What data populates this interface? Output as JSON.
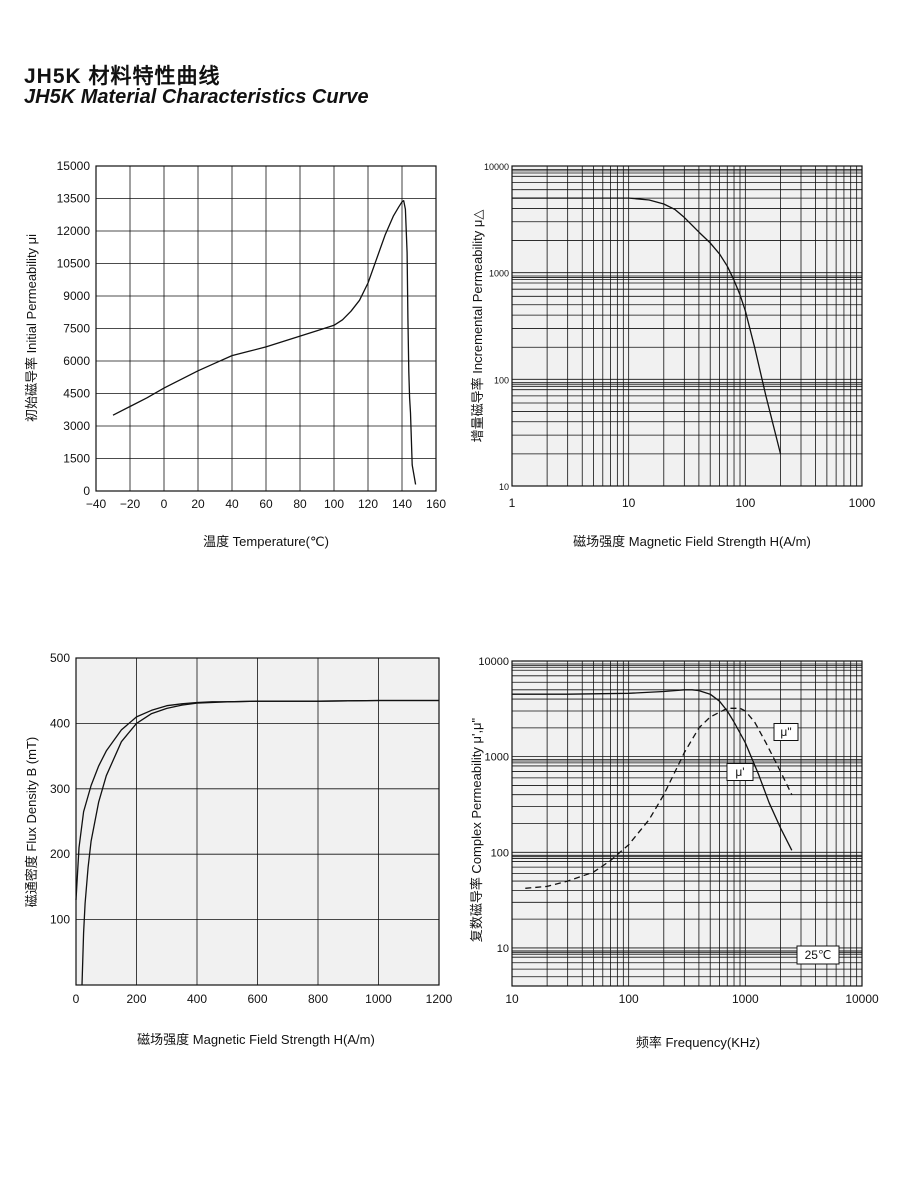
{
  "page": {
    "title_cn": "JH5K 材料特性曲线",
    "title_en": "JH5K Material Characteristics Curve"
  },
  "chart_data": [
    {
      "id": "c1",
      "type": "line",
      "xlabel": "温度 Temperature(℃)",
      "ylabel": "初始磁导率 Initial Permeability μi",
      "xlim": [
        -40,
        160
      ],
      "ylim": [
        0,
        15000
      ],
      "x_ticks": [
        -40,
        -20,
        0,
        20,
        40,
        60,
        80,
        100,
        120,
        140,
        160
      ],
      "x_tick_labels": [
        "−40",
        "−20",
        "0",
        "20",
        "40",
        "60",
        "80",
        "100",
        "120",
        "140",
        "160"
      ],
      "y_ticks": [
        0,
        1500,
        3000,
        4500,
        6000,
        7500,
        9000,
        10500,
        12000,
        13500,
        15000
      ],
      "y_tick_labels": [
        "0",
        "1500",
        "3000",
        "4500",
        "6000",
        "7500",
        "9000",
        "10500",
        "12000",
        "13500",
        "15000"
      ],
      "grid": true,
      "series": [
        {
          "x": [
            -30,
            -20,
            -10,
            0,
            10,
            20,
            30,
            40,
            50,
            60,
            70,
            80,
            90,
            100,
            105,
            110,
            115,
            120,
            125,
            130,
            135,
            138,
            140,
            141,
            142,
            143,
            143.5,
            144,
            144.5,
            145,
            146,
            148
          ],
          "y": [
            3500,
            3900,
            4300,
            4750,
            5150,
            5550,
            5900,
            6250,
            6450,
            6650,
            6900,
            7150,
            7400,
            7650,
            7900,
            8300,
            8800,
            9600,
            10700,
            11800,
            12700,
            13100,
            13350,
            13400,
            13000,
            11000,
            8000,
            5500,
            4300,
            3600,
            1200,
            300
          ],
          "style": "solid"
        }
      ]
    },
    {
      "id": "c2",
      "type": "line",
      "xlabel": "磁场强度 Magnetic Field Strength H(A/m)",
      "ylabel": "增量磁导率 Incremental Permeability μ△",
      "xscale": "log",
      "yscale": "log",
      "xlim": [
        1,
        1000
      ],
      "ylim": [
        10,
        10000
      ],
      "x_ticks": [
        1,
        10,
        100,
        1000
      ],
      "x_tick_labels": [
        "1",
        "10",
        "100",
        "1000"
      ],
      "y_ticks": [
        10,
        100,
        1000,
        10000
      ],
      "y_tick_labels": [
        "10",
        "100",
        "1000",
        "10000"
      ],
      "grid": true,
      "series": [
        {
          "x": [
            1,
            5,
            10,
            15,
            20,
            25,
            30,
            40,
            50,
            60,
            70,
            80,
            90,
            100,
            120,
            150,
            200
          ],
          "y": [
            5000,
            5000,
            5000,
            4800,
            4400,
            3900,
            3300,
            2400,
            1900,
            1500,
            1150,
            850,
            620,
            440,
            200,
            70,
            20
          ],
          "style": "solid"
        }
      ]
    },
    {
      "id": "c3",
      "type": "line",
      "xlabel": "磁场强度 Magnetic Field Strength H(A/m)",
      "ylabel": "磁通密度 Flux Density B (mT)",
      "xlim": [
        0,
        1200
      ],
      "ylim": [
        0,
        500
      ],
      "x_ticks": [
        0,
        200,
        400,
        600,
        800,
        1000,
        1200
      ],
      "x_tick_labels": [
        "0",
        "200",
        "400",
        "600",
        "800",
        "1000",
        "1200"
      ],
      "y_ticks": [
        100,
        200,
        300,
        400,
        500
      ],
      "y_tick_labels": [
        "100",
        "200",
        "300",
        "400",
        "500"
      ],
      "grid": true,
      "series": [
        {
          "x": [
            0,
            10,
            25,
            50,
            75,
            100,
            150,
            200,
            250,
            300,
            350,
            400,
            450,
            500,
            600,
            800,
            1000,
            1200
          ],
          "y": [
            130,
            210,
            265,
            305,
            335,
            358,
            390,
            410,
            420,
            427,
            430,
            432,
            433,
            433,
            434,
            434,
            435,
            435
          ],
          "style": "solid"
        },
        {
          "x": [
            20,
            25,
            30,
            40,
            50,
            75,
            100,
            150,
            200,
            250,
            300,
            350,
            400,
            450,
            500,
            600,
            800,
            1000,
            1200
          ],
          "y": [
            0,
            80,
            125,
            180,
            220,
            280,
            320,
            372,
            400,
            415,
            423,
            428,
            431,
            432,
            433,
            434,
            434,
            435,
            435
          ],
          "style": "solid"
        }
      ]
    },
    {
      "id": "c4",
      "type": "line",
      "xlabel": "频率 Frequency(KHz)",
      "ylabel": "复数磁导率 Complex Permeability μ',μ\"",
      "xscale": "log",
      "yscale": "log",
      "xlim": [
        10,
        10000
      ],
      "ylim": [
        4,
        10000
      ],
      "x_ticks": [
        10,
        100,
        1000,
        10000
      ],
      "x_tick_labels": [
        "10",
        "100",
        "1000",
        "10000"
      ],
      "y_ticks": [
        10,
        100,
        1000,
        10000
      ],
      "y_tick_labels": [
        "10",
        "100",
        "1000",
        "10000"
      ],
      "grid": true,
      "annotations": [
        "μ'",
        "μ\"",
        "25℃"
      ],
      "series": [
        {
          "name": "μ'",
          "x": [
            10,
            30,
            100,
            200,
            300,
            350,
            400,
            500,
            600,
            700,
            800,
            1000,
            1300,
            1600,
            2000,
            2500
          ],
          "y": [
            4500,
            4500,
            4600,
            4800,
            5000,
            5000,
            4900,
            4500,
            3800,
            3000,
            2300,
            1400,
            650,
            330,
            180,
            105
          ],
          "style": "solid"
        },
        {
          "name": "μ\"",
          "x": [
            13,
            20,
            30,
            50,
            70,
            100,
            150,
            200,
            300,
            400,
            500,
            700,
            900,
            1000,
            1200,
            1500,
            2000,
            2500
          ],
          "y": [
            42,
            44,
            50,
            62,
            82,
            120,
            220,
            400,
            1100,
            2000,
            2600,
            3200,
            3200,
            3000,
            2300,
            1400,
            700,
            400
          ],
          "style": "dashed"
        }
      ]
    }
  ]
}
